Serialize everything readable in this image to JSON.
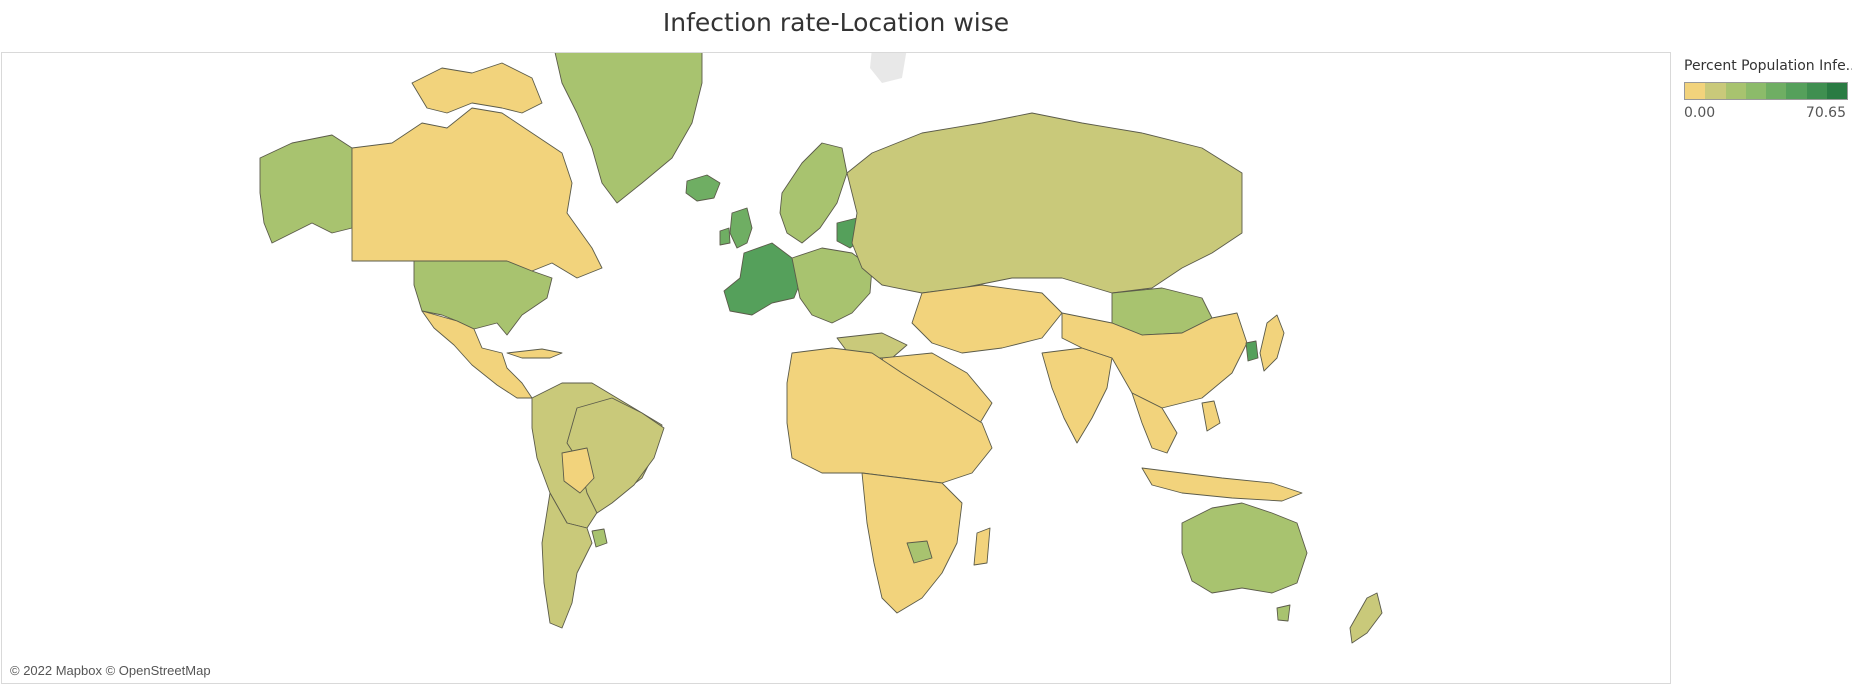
{
  "title": "Infection rate-Location wise",
  "legend": {
    "title": "Percent Population Infe..",
    "min_label": "0.00",
    "max_label": "70.65",
    "colors": [
      "#f2d37c",
      "#c9c97a",
      "#a8c36f",
      "#8cbb6a",
      "#6fae63",
      "#55a05b",
      "#3f8f50",
      "#2a7b43"
    ]
  },
  "attribution": "© 2022 Mapbox © OpenStreetMap",
  "map": {
    "fills": {
      "low": "#f2d37c",
      "lowmid": "#c9c97a",
      "mid": "#a8c36f",
      "midhigh": "#8cbb6a",
      "high": "#6fae63",
      "higher": "#55a05b"
    }
  }
}
